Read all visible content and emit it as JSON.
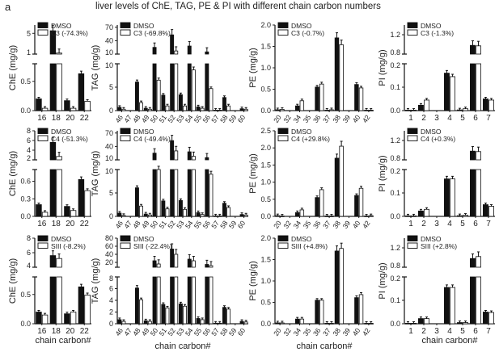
{
  "panel_label": "a",
  "title": "liver levels of ChE, TAG, PE & PI with different chain carbon numbers",
  "colors": {
    "control": "#111111",
    "treated": "#ffffff",
    "axis": "#222222"
  },
  "chart_data": [
    {
      "type": "bar",
      "lipid": "ChE",
      "ylabel": "ChE (mg/g)",
      "xlabel": "",
      "categories": [
        "16",
        "18",
        "20",
        "22"
      ],
      "rotate": false,
      "lower": {
        "ylim": [
          0,
          0.8
        ],
        "ticks": [
          0,
          0.5
        ],
        "tick_labels": [
          "0.0",
          "0.5"
        ]
      },
      "upper": {
        "ylim": [
          1,
          6.6
        ],
        "ticks": [
          1,
          5
        ],
        "tick_labels": [
          "1",
          "5"
        ]
      },
      "series": [
        {
          "name": "DMSO",
          "values": [
            0.2,
            5.5,
            0.17,
            0.63
          ]
        },
        {
          "name": "C3 (-74.3%)",
          "values": [
            0.04,
            1.2,
            0.04,
            0.16
          ]
        }
      ]
    },
    {
      "type": "bar",
      "lipid": "TAG",
      "ylabel": "TAG (mg/g)",
      "xlabel": "",
      "categories": [
        "46",
        "47",
        "48",
        "49",
        "50",
        "51",
        "52",
        "53",
        "54",
        "55",
        "56",
        "57",
        "58",
        "59",
        "60"
      ],
      "rotate": true,
      "lower": {
        "ylim": [
          0,
          10
        ],
        "ticks": [
          0,
          5,
          10
        ],
        "tick_labels": [
          "0",
          "5",
          "10"
        ]
      },
      "upper": {
        "ylim": [
          10,
          75
        ],
        "ticks": [
          10,
          40,
          70
        ],
        "tick_labels": [
          "10",
          "40",
          "70"
        ]
      },
      "series": [
        {
          "name": "DMSO",
          "values": [
            0.7,
            0,
            6.1,
            0.5,
            25,
            3.3,
            53,
            3.4,
            28,
            0.8,
            15,
            0.1,
            2.8,
            0,
            0.4
          ]
        },
        {
          "name": "C3 (-69.8%)",
          "values": [
            0.3,
            0,
            1.7,
            0.3,
            6.5,
            1.0,
            17,
            1.0,
            8.7,
            0.5,
            4.7,
            0.1,
            1.0,
            0,
            0.3
          ]
        }
      ]
    },
    {
      "type": "bar",
      "lipid": "PE",
      "ylabel": "PE (mg/g)",
      "xlabel": "",
      "categories": [
        "20",
        "32",
        "34",
        "35",
        "36",
        "37",
        "38",
        "39",
        "40",
        "42"
      ],
      "rotate": true,
      "ylim": [
        0,
        2.0
      ],
      "ticks": [
        0,
        0.5,
        1,
        1.5,
        2
      ],
      "tick_labels": [
        "0.0",
        "0.5",
        "1.0",
        "1.5",
        "2.0"
      ],
      "series": [
        {
          "name": "DMSO",
          "values": [
            0.02,
            0,
            0.11,
            0,
            0.55,
            0.01,
            1.7,
            0,
            0.61,
            0.01
          ]
        },
        {
          "name": "C3 (-0.7%)",
          "values": [
            0.03,
            0,
            0.23,
            0,
            0.62,
            0.02,
            1.54,
            0,
            0.53,
            0.01
          ]
        }
      ]
    },
    {
      "type": "bar",
      "lipid": "PI",
      "ylabel": "PI (mg/g)",
      "xlabel": "",
      "categories": [
        "1",
        "2",
        "3",
        "4",
        "5",
        "6",
        "7"
      ],
      "rotate": false,
      "lower": {
        "ylim": [
          0,
          0.2
        ],
        "ticks": [
          0,
          0.1,
          0.2
        ],
        "tick_labels": [
          "0.0",
          "0.1",
          "0.2"
        ]
      },
      "upper": {
        "ylim": [
          0.8,
          1.4
        ],
        "ticks": [
          0.8,
          1.2
        ],
        "tick_labels": [
          "0.8",
          "1.2"
        ]
      },
      "series": [
        {
          "name": "DMSO",
          "values": [
            0.002,
            0.023,
            0,
            0.16,
            0.003,
            0.98,
            0.05
          ]
        },
        {
          "name": "C3 (-1.3%)",
          "values": [
            0.002,
            0.045,
            0,
            0.145,
            0.008,
            0.97,
            0.045
          ]
        }
      ]
    },
    {
      "type": "bar",
      "lipid": "ChE",
      "ylabel": "ChE (mg/g)",
      "xlabel": "",
      "categories": [
        "16",
        "18",
        "20",
        "22"
      ],
      "rotate": false,
      "lower": {
        "ylim": [
          0,
          0.8
        ],
        "ticks": [
          0,
          0.3,
          0.6
        ],
        "tick_labels": [
          "0.0",
          "0.3",
          "0.6"
        ]
      },
      "upper": {
        "ylim": [
          2,
          8
        ],
        "ticks": [
          2,
          4,
          6,
          8
        ],
        "tick_labels": [
          "2",
          "4",
          "6",
          "8"
        ]
      },
      "series": [
        {
          "name": "DMSO",
          "values": [
            0.2,
            5.6,
            0.17,
            0.63
          ]
        },
        {
          "name": "C4 (-51.3%)",
          "values": [
            0.07,
            2.7,
            0.1,
            0.44
          ]
        }
      ]
    },
    {
      "type": "bar",
      "lipid": "TAG",
      "ylabel": "TAG (mg/g)",
      "xlabel": "",
      "categories": [
        "46",
        "47",
        "48",
        "49",
        "50",
        "51",
        "52",
        "53",
        "54",
        "55",
        "56",
        "57",
        "58",
        "59",
        "60"
      ],
      "rotate": true,
      "lower": {
        "ylim": [
          0,
          10
        ],
        "ticks": [
          0,
          5,
          10
        ],
        "tick_labels": [
          "0",
          "5",
          "10"
        ]
      },
      "upper": {
        "ylim": [
          10,
          75
        ],
        "ticks": [
          10,
          40,
          70
        ],
        "tick_labels": [
          "10",
          "40",
          "70"
        ]
      },
      "series": [
        {
          "name": "DMSO",
          "values": [
            0.7,
            0,
            6.1,
            0.5,
            25,
            3.3,
            53,
            3.4,
            28,
            0.8,
            15,
            0.1,
            2.8,
            0,
            0.4
          ]
        },
        {
          "name": "C4 (-49.4%)",
          "values": [
            0.2,
            0,
            2.2,
            0.3,
            10,
            1.6,
            30,
            1.5,
            18,
            0.4,
            9,
            0.1,
            1.9,
            0,
            0.3
          ]
        }
      ]
    },
    {
      "type": "bar",
      "lipid": "PE",
      "ylabel": "PE (mg/g)",
      "xlabel": "",
      "categories": [
        "20",
        "32",
        "34",
        "35",
        "36",
        "37",
        "38",
        "39",
        "40",
        "42"
      ],
      "rotate": true,
      "ylim": [
        0,
        2.5
      ],
      "ticks": [
        0,
        0.5,
        1,
        1.5,
        2,
        2.5
      ],
      "tick_labels": [
        "0.0",
        "0.5",
        "1.0",
        "1.5",
        "2.0",
        "2.5"
      ],
      "series": [
        {
          "name": "DMSO",
          "values": [
            0.02,
            0,
            0.11,
            0,
            0.55,
            0.01,
            1.7,
            0,
            0.61,
            0.01
          ]
        },
        {
          "name": "C4 (+29.8%)",
          "values": [
            0.01,
            0,
            0.19,
            0,
            0.78,
            0.01,
            2.05,
            0,
            0.82,
            0.02
          ]
        }
      ]
    },
    {
      "type": "bar",
      "lipid": "PI",
      "ylabel": "PI (mg/g)",
      "xlabel": "",
      "categories": [
        "1",
        "2",
        "3",
        "4",
        "5",
        "6",
        "7"
      ],
      "rotate": false,
      "lower": {
        "ylim": [
          0,
          0.2
        ],
        "ticks": [
          0,
          0.1,
          0.2
        ],
        "tick_labels": [
          "0.0",
          "0.1",
          "0.2"
        ]
      },
      "upper": {
        "ylim": [
          0.8,
          1.4
        ],
        "ticks": [
          0.8,
          1.2
        ],
        "tick_labels": [
          "0.8",
          "1.2"
        ]
      },
      "series": [
        {
          "name": "DMSO",
          "values": [
            0.002,
            0.023,
            0,
            0.16,
            0.003,
            0.98,
            0.05
          ]
        },
        {
          "name": "C4 (+0.3%)",
          "values": [
            0.002,
            0.03,
            0,
            0.16,
            0.005,
            0.97,
            0.043
          ]
        }
      ]
    },
    {
      "type": "bar",
      "lipid": "ChE",
      "ylabel": "ChE (mg/g)",
      "xlabel": "chain carbon#",
      "categories": [
        "16",
        "18",
        "20",
        "22"
      ],
      "rotate": false,
      "lower": {
        "ylim": [
          0,
          0.8
        ],
        "ticks": [
          0,
          0.5
        ],
        "tick_labels": [
          "0.0",
          "0.5"
        ]
      },
      "upper": {
        "ylim": [
          4,
          8
        ],
        "ticks": [
          4,
          6,
          8
        ],
        "tick_labels": [
          "4",
          "6",
          "8"
        ]
      },
      "series": [
        {
          "name": "DMSO",
          "values": [
            0.2,
            5.6,
            0.17,
            0.63
          ]
        },
        {
          "name": "SIII (-8.2%)",
          "values": [
            0.15,
            5.2,
            0.2,
            0.49
          ]
        }
      ]
    },
    {
      "type": "bar",
      "lipid": "TAG",
      "ylabel": "TAG (mg/g)",
      "xlabel": "chain carbon#",
      "categories": [
        "46",
        "47",
        "48",
        "49",
        "50",
        "51",
        "52",
        "53",
        "54",
        "55",
        "56",
        "57",
        "58",
        "59",
        "60"
      ],
      "rotate": true,
      "lower": {
        "ylim": [
          0,
          8
        ],
        "ticks": [
          0,
          2,
          4,
          6,
          8
        ],
        "tick_labels": [
          "0",
          "2",
          "4",
          "6",
          "8"
        ]
      },
      "upper": {
        "ylim": [
          8,
          80
        ],
        "ticks": [
          20,
          40,
          60,
          80
        ],
        "tick_labels": [
          "20",
          "40",
          "60",
          "80"
        ]
      },
      "series": [
        {
          "name": "DMSO",
          "values": [
            0.7,
            0,
            6.1,
            0.5,
            24,
            3.3,
            53,
            3.4,
            28,
            0.9,
            15,
            0.1,
            2.8,
            0,
            0.4
          ]
        },
        {
          "name": "SIII (-22.4%)",
          "values": [
            0.4,
            0,
            4.1,
            0.4,
            16,
            2.7,
            40,
            3.0,
            24,
            0.7,
            12,
            0.1,
            2.5,
            0,
            0.3
          ]
        }
      ]
    },
    {
      "type": "bar",
      "lipid": "PE",
      "ylabel": "PE (mg/g)",
      "xlabel": "chain carbon#",
      "categories": [
        "20",
        "32",
        "34",
        "35",
        "36",
        "37",
        "38",
        "39",
        "40",
        "42"
      ],
      "rotate": true,
      "ylim": [
        0,
        2.0
      ],
      "ticks": [
        0,
        0.5,
        1,
        1.5,
        2
      ],
      "tick_labels": [
        "0.0",
        "0.5",
        "1.0",
        "1.5",
        "2.0"
      ],
      "series": [
        {
          "name": "DMSO",
          "values": [
            0.02,
            0,
            0.11,
            0,
            0.55,
            0.01,
            1.7,
            0,
            0.61,
            0.01
          ]
        },
        {
          "name": "SIII (+4.8%)",
          "values": [
            0.02,
            0,
            0.11,
            0,
            0.55,
            0.01,
            1.76,
            0,
            0.68,
            0.01
          ]
        }
      ]
    },
    {
      "type": "bar",
      "lipid": "PI",
      "ylabel": "PI (mg/g)",
      "xlabel": "chain carbon#",
      "categories": [
        "1",
        "2",
        "3",
        "4",
        "5",
        "6",
        "7"
      ],
      "rotate": false,
      "lower": {
        "ylim": [
          0,
          0.2
        ],
        "ticks": [
          0,
          0.1,
          0.2
        ],
        "tick_labels": [
          "0.0",
          "0.1",
          "0.2"
        ]
      },
      "upper": {
        "ylim": [
          0.8,
          1.4
        ],
        "ticks": [
          0.8,
          1.2
        ],
        "tick_labels": [
          "0.8",
          "1.2"
        ]
      },
      "series": [
        {
          "name": "DMSO",
          "values": [
            0.002,
            0.022,
            0,
            0.155,
            0.005,
            0.98,
            0.05
          ]
        },
        {
          "name": "SIII (+2.8%)",
          "values": [
            0.002,
            0.022,
            0,
            0.155,
            0.005,
            1.02,
            0.048
          ]
        }
      ]
    }
  ]
}
